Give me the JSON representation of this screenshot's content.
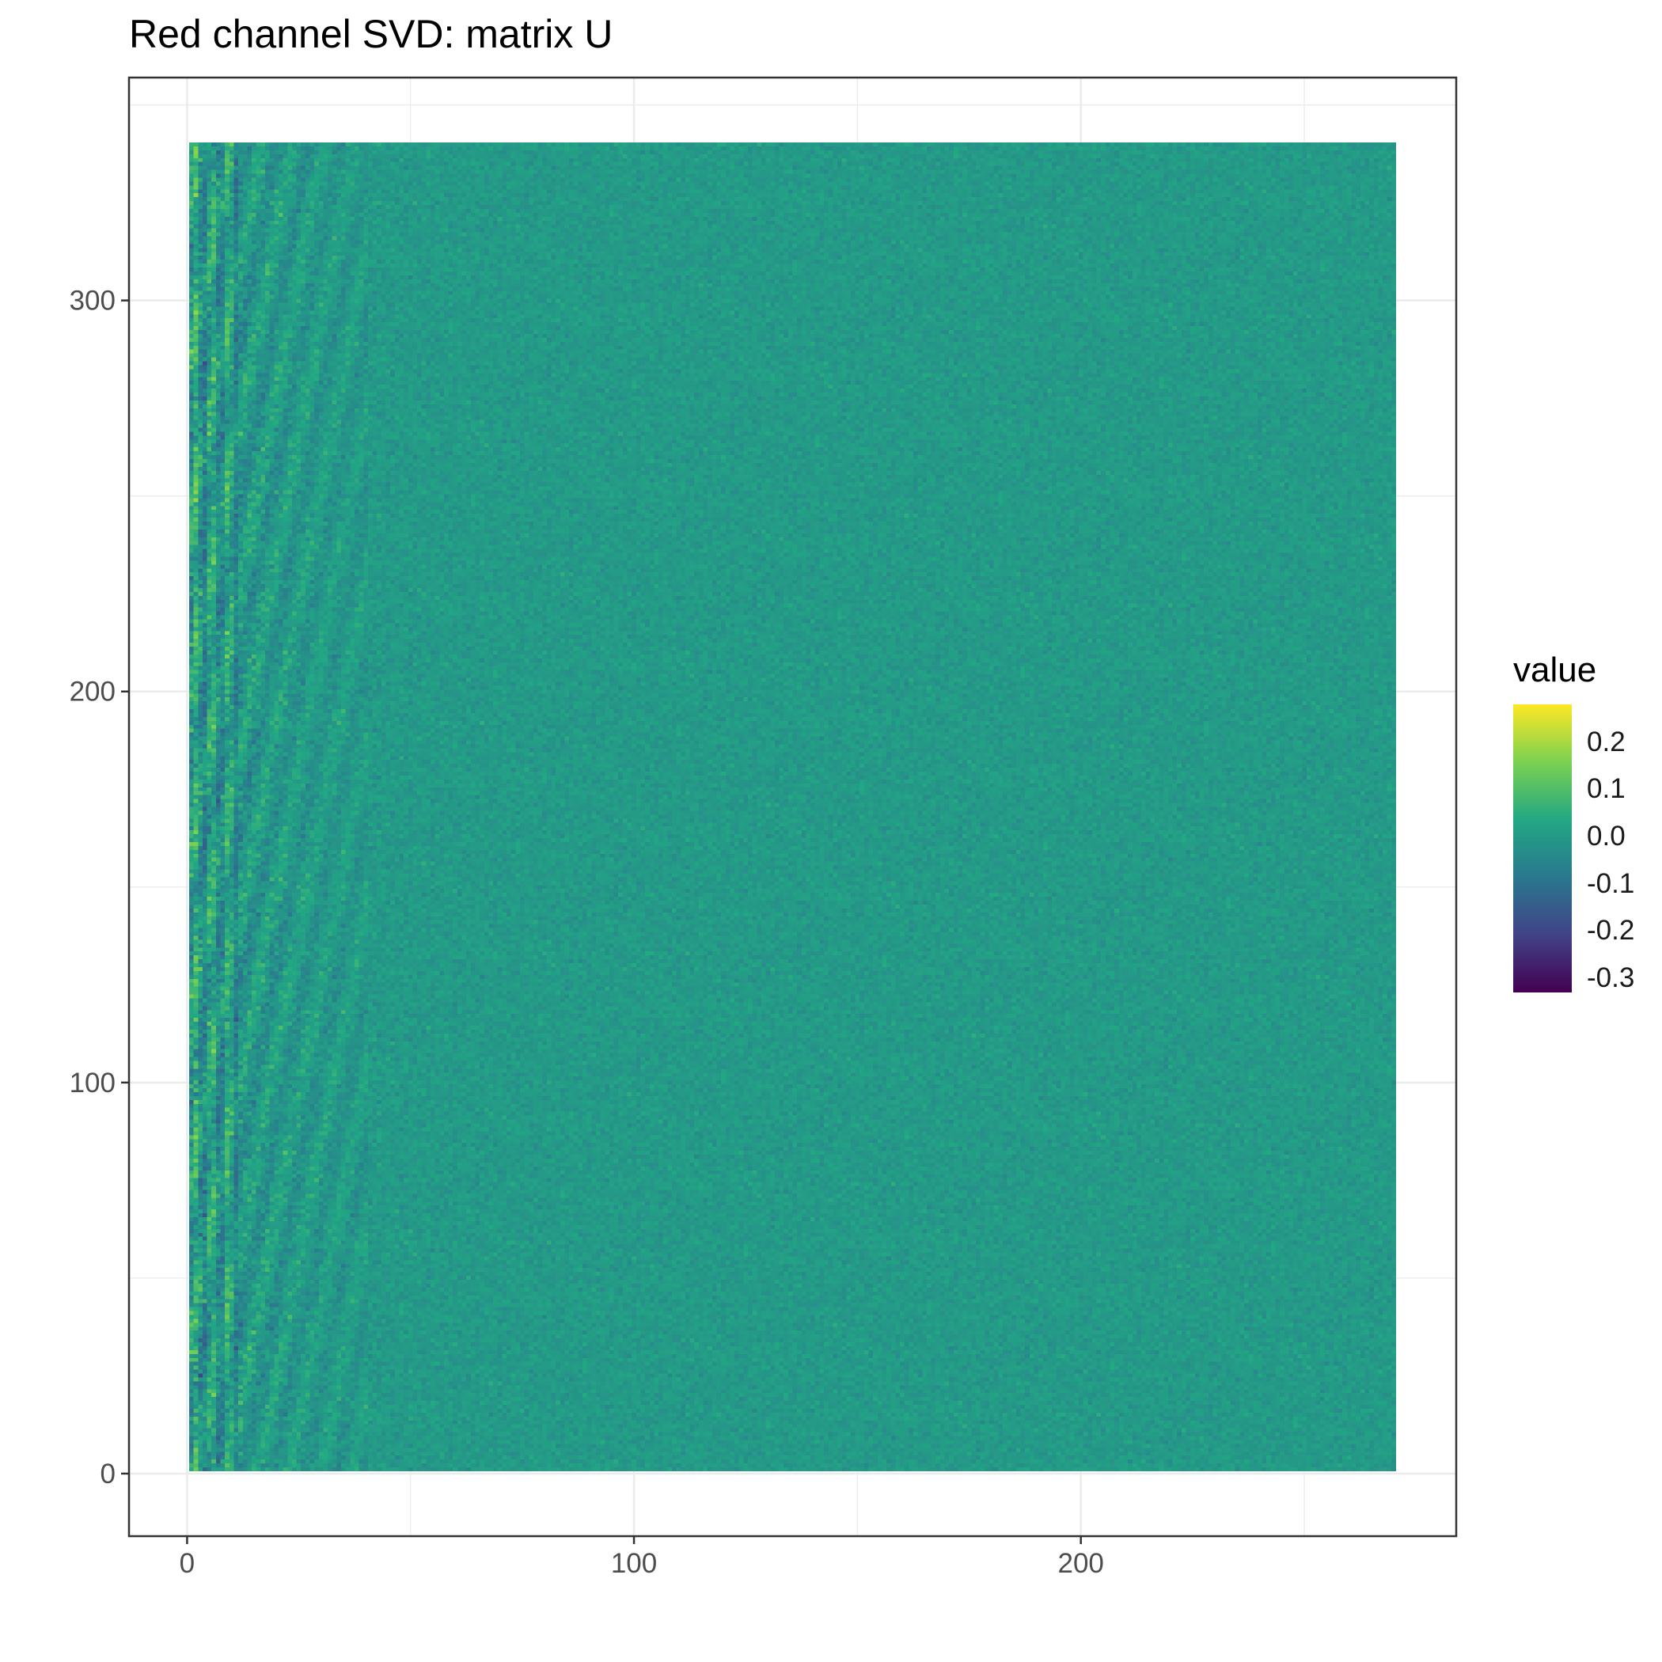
{
  "chart_data": {
    "type": "heatmap",
    "title": "Red channel SVD: matrix U",
    "xlabel": "",
    "ylabel": "",
    "x_range": [
      1,
      270
    ],
    "y_range": [
      1,
      340
    ],
    "xlim": [
      -13,
      284
    ],
    "ylim": [
      -16,
      357
    ],
    "x_ticks": [
      0,
      100,
      200
    ],
    "y_ticks": [
      0,
      100,
      200,
      300
    ],
    "grid": true,
    "legend": {
      "title": "value",
      "placement": "right",
      "ticks": [
        0.2,
        0.1,
        0.0,
        -0.1,
        -0.2,
        -0.3
      ],
      "tick_labels": [
        "0.2",
        "0.1",
        "0.0",
        "-0.1",
        "-0.2",
        "-0.3"
      ],
      "range": [
        -0.33,
        0.28
      ]
    },
    "colormap": "viridis",
    "colors": [
      "#440154",
      "#414487",
      "#2a788e",
      "#22a884",
      "#7ad151",
      "#fde725"
    ],
    "value_pattern": "Columns are left singular vectors of a 340x270 matrix; values centred near 0 with spread shrinking from about ±0.3 in the first columns to about ±0.1 in the last columns"
  }
}
